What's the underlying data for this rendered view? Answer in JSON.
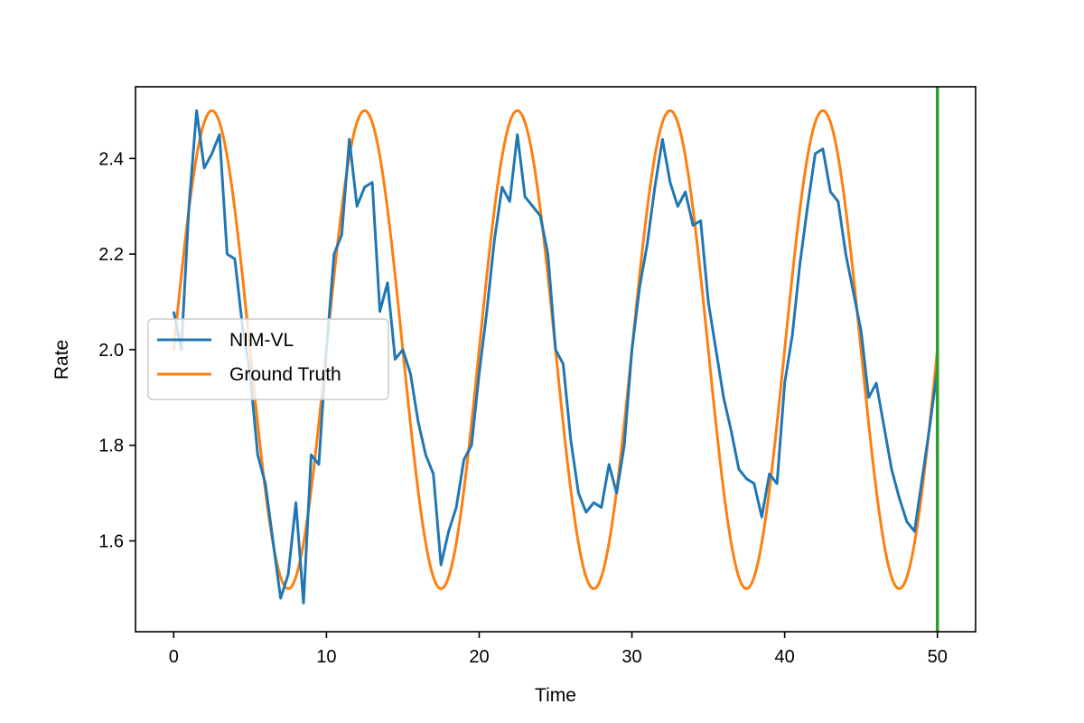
{
  "chart_data": {
    "type": "line",
    "xlabel": "Time",
    "ylabel": "Rate",
    "xlim": [
      -2.5,
      52.5
    ],
    "ylim": [
      1.41,
      2.55
    ],
    "xticks": [
      0,
      10,
      20,
      30,
      40,
      50
    ],
    "yticks": [
      1.6,
      1.8,
      2.0,
      2.2,
      2.4
    ],
    "legend": {
      "placement": "center-left",
      "entries": [
        "NIM-VL",
        "Ground Truth"
      ]
    },
    "grid": false,
    "vertical_marker": {
      "x": 50,
      "color": "#2ca02c"
    },
    "series": [
      {
        "name": "NIM-VL",
        "color": "#1f77b4",
        "x": [
          0,
          0.5,
          1,
          1.5,
          2,
          2.5,
          3,
          3.5,
          4,
          4.5,
          5,
          5.5,
          6,
          6.5,
          7,
          7.5,
          8,
          8.5,
          9,
          9.5,
          10,
          10.5,
          11,
          11.5,
          12,
          12.5,
          13,
          13.5,
          14,
          14.5,
          15,
          15.5,
          16,
          16.5,
          17,
          17.5,
          18,
          18.5,
          19,
          19.5,
          20,
          20.5,
          21,
          21.5,
          22,
          22.5,
          23,
          23.5,
          24,
          24.5,
          25,
          25.5,
          26,
          26.5,
          27,
          27.5,
          28,
          28.5,
          29,
          29.5,
          30,
          30.5,
          31,
          31.5,
          32,
          32.5,
          33,
          33.5,
          34,
          34.5,
          35,
          35.5,
          36,
          36.5,
          37,
          37.5,
          38,
          38.5,
          39,
          39.5,
          40,
          40.5,
          41,
          41.5,
          42,
          42.5,
          43,
          43.5,
          44,
          44.5,
          45,
          45.5,
          46,
          46.5,
          47,
          47.5,
          48,
          48.5,
          49,
          49.5,
          50
        ],
        "values": [
          2.08,
          2.0,
          2.3,
          2.5,
          2.38,
          2.41,
          2.45,
          2.2,
          2.19,
          2.05,
          1.95,
          1.78,
          1.72,
          1.6,
          1.48,
          1.53,
          1.68,
          1.47,
          1.78,
          1.76,
          2.0,
          2.2,
          2.24,
          2.44,
          2.3,
          2.34,
          2.35,
          2.08,
          2.14,
          1.98,
          2.0,
          1.95,
          1.85,
          1.78,
          1.74,
          1.55,
          1.62,
          1.67,
          1.77,
          1.8,
          1.95,
          2.08,
          2.23,
          2.34,
          2.31,
          2.45,
          2.32,
          2.3,
          2.28,
          2.2,
          2.0,
          1.97,
          1.81,
          1.7,
          1.66,
          1.68,
          1.67,
          1.76,
          1.7,
          1.8,
          2.0,
          2.13,
          2.22,
          2.34,
          2.44,
          2.35,
          2.3,
          2.33,
          2.26,
          2.27,
          2.1,
          2.0,
          1.9,
          1.83,
          1.75,
          1.73,
          1.72,
          1.65,
          1.74,
          1.72,
          1.93,
          2.03,
          2.18,
          2.3,
          2.41,
          2.42,
          2.33,
          2.31,
          2.2,
          2.12,
          2.04,
          1.9,
          1.93,
          1.84,
          1.75,
          1.69,
          1.64,
          1.62,
          1.73,
          1.84,
          1.96
        ]
      },
      {
        "name": "Ground Truth",
        "color": "#ff7f0e",
        "function": "2 + 0.5*sin(2*pi*t/10)",
        "x_range": [
          0,
          50
        ]
      }
    ]
  }
}
